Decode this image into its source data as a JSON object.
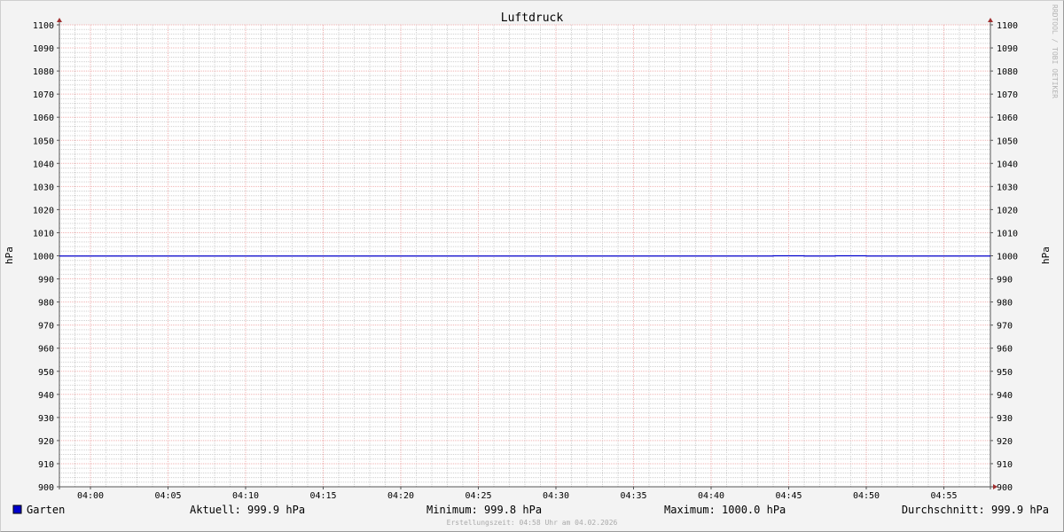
{
  "chart_data": {
    "type": "line",
    "title": "Luftdruck",
    "ylabel": "hPa",
    "ylabel_right": "hPa",
    "xlim": [
      "03:58",
      "04:58"
    ],
    "ylim": [
      900,
      1100
    ],
    "y_ticks": [
      900,
      910,
      920,
      930,
      940,
      950,
      960,
      970,
      980,
      990,
      1000,
      1010,
      1020,
      1030,
      1040,
      1050,
      1060,
      1070,
      1080,
      1090,
      1100
    ],
    "x_ticks": [
      "04:00",
      "04:05",
      "04:10",
      "04:15",
      "04:20",
      "04:25",
      "04:30",
      "04:35",
      "04:40",
      "04:45",
      "04:50",
      "04:55"
    ],
    "grid": true,
    "legend_position": "bottom-left",
    "series": [
      {
        "name": "Garten",
        "color": "#0000cc",
        "step": true,
        "points": [
          [
            "03:58",
            999.9
          ],
          [
            "04:44",
            1000.0
          ],
          [
            "04:46",
            999.9
          ],
          [
            "04:48",
            1000.0
          ],
          [
            "04:50",
            999.9
          ],
          [
            "04:58",
            999.9
          ]
        ]
      }
    ],
    "stats": {
      "current": "Aktuell: 999.9 hPa",
      "minimum": "Minimum: 999.8 hPa",
      "maximum": "Maximum: 1000.0 hPa",
      "average": "Durchschnitt: 999.9 hPa"
    }
  },
  "footer": "Erstellungszeit: 04:58 Uhr am 04.02.2026",
  "watermark": "RRDTOOL / TOBI OETIKER"
}
